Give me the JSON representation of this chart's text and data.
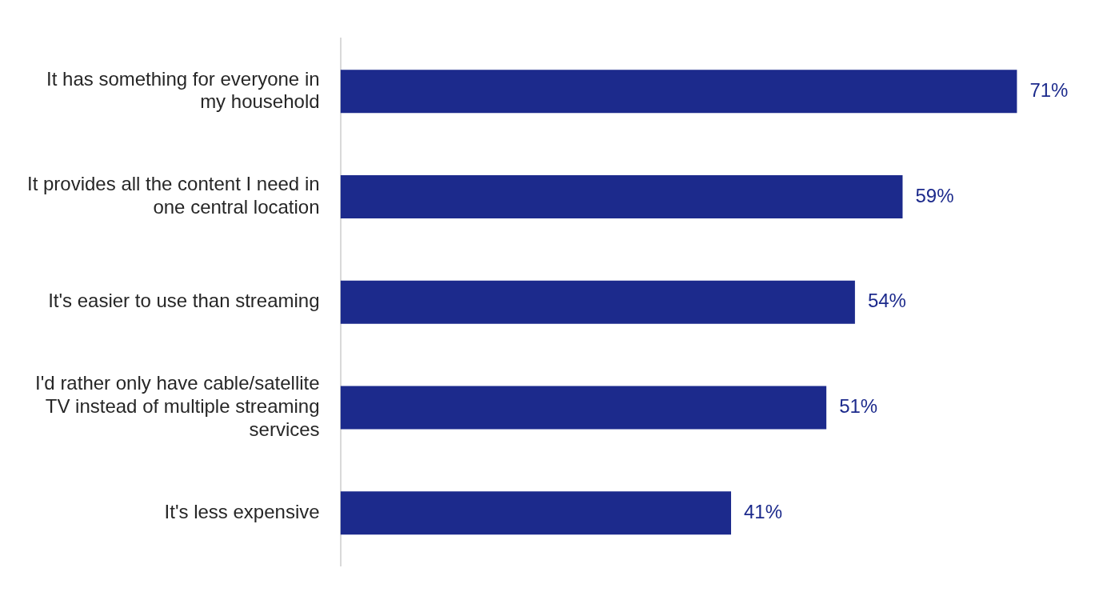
{
  "chart_data": {
    "type": "bar",
    "orientation": "horizontal",
    "categories": [
      "It has something for everyone in my household",
      "It provides all the content I need in one central location",
      "It's easier to use than streaming",
      "I'd rather only have cable/satellite TV instead of multiple streaming services",
      "It's less expensive"
    ],
    "values": [
      71,
      59,
      54,
      51,
      41
    ],
    "color": "#1c2a8c",
    "value_labels": [
      "71%",
      "59%",
      "54%",
      "51%",
      "41%"
    ],
    "grid": false,
    "legend": false
  }
}
